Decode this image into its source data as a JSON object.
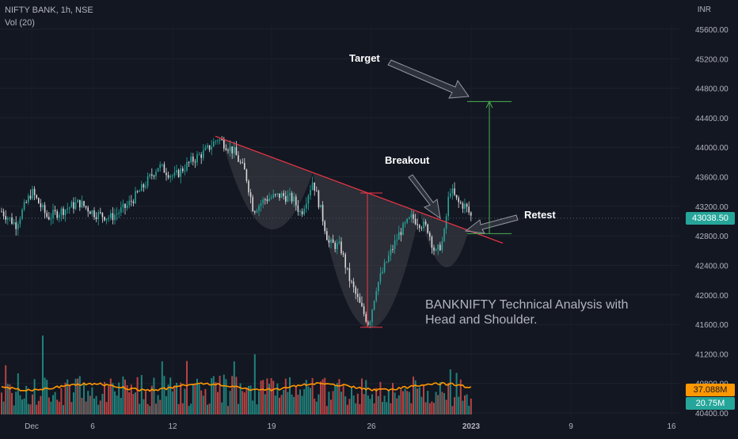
{
  "header": {
    "symbol_line": "NIFTY BANK, 1h, NSE",
    "volume_line": "Vol (20)",
    "currency": "INR"
  },
  "annotations": {
    "target": "Target",
    "breakout": "Breakout",
    "retest": "Retest",
    "description_line1": "BANKNIFTY Technical Analysis with",
    "description_line2": "Head and Shoulder."
  },
  "price_tags": {
    "last_price": "43038.50",
    "volume_ma": "37.088M",
    "volume_last": "20.75M"
  },
  "colors": {
    "background": "#131722",
    "up_candle": "#26a69a",
    "down_candle": "#d9d9d9",
    "neckline": "#f23645",
    "target_line": "#4caf50",
    "volume_up": "#26a69a",
    "volume_down": "#ef5350",
    "volume_ma": "#ff9800",
    "pattern_fill": "#4a4a52"
  },
  "chart_data": {
    "type": "candlestick",
    "title": "NIFTY BANK, 1h, NSE",
    "price_axis": {
      "unit": "INR",
      "range": [
        40400,
        45800
      ],
      "ticks": [
        40400,
        40800,
        41200,
        41600,
        42000,
        42400,
        42800,
        43200,
        43600,
        44000,
        44400,
        44800,
        45200,
        45600
      ],
      "tick_labels": [
        "40400.00",
        "40800.00",
        "41200.00",
        "41600.00",
        "42000.00",
        "42400.00",
        "42800.00",
        "43200.00",
        "43600.00",
        "44000.00",
        "44400.00",
        "44800.00",
        "45200.00",
        "45600.00"
      ]
    },
    "time_axis": {
      "labels": [
        "Dec",
        "6",
        "12",
        "19",
        "26",
        "2023",
        "9",
        "16"
      ]
    },
    "last_price": 43038.5,
    "patterns": {
      "left_shoulder_low": 42900,
      "head_low": 41560,
      "right_shoulder_low": 42380,
      "neckline_start": 44150,
      "neckline_end": 42700,
      "target": 44620,
      "retest": 42830
    },
    "volume": {
      "ma_last": "37.088M",
      "last": "20.75M"
    }
  }
}
